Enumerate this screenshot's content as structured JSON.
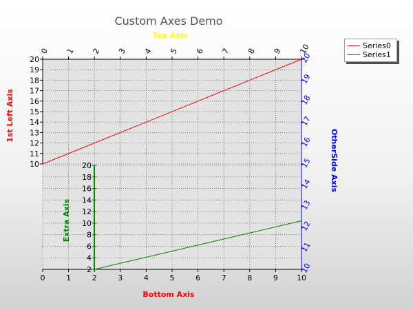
{
  "chart_data": {
    "type": "line",
    "title": "Custom Axes Demo",
    "legend_position": "top-right",
    "grid": true,
    "axes": {
      "bottom": {
        "label": "Bottom Axis",
        "range": [
          0,
          10
        ],
        "ticks": [
          "0",
          "1",
          "2",
          "3",
          "4",
          "5",
          "6",
          "7",
          "8",
          "9",
          "10"
        ],
        "color": "#ff0000"
      },
      "top": {
        "label": "Top Axis",
        "range": [
          0,
          10
        ],
        "ticks": [
          "0",
          "1",
          "2",
          "3",
          "4",
          "5",
          "6",
          "7",
          "8",
          "9",
          "10"
        ],
        "color": "#ffff00"
      },
      "left": {
        "label": "1st Left Axis",
        "range": [
          10,
          20
        ],
        "ticks": [
          "10",
          "11",
          "12",
          "13",
          "14",
          "15",
          "16",
          "17",
          "18",
          "19",
          "20"
        ],
        "color": "#ff0000"
      },
      "right": {
        "label": "OtherSide Axis",
        "range": [
          10,
          20
        ],
        "ticks": [
          "10",
          "11",
          "12",
          "13",
          "14",
          "15",
          "16",
          "17",
          "18",
          "19",
          "20"
        ],
        "color": "#0000ff"
      },
      "extra": {
        "label": "Extra Axis",
        "range": [
          2,
          20
        ],
        "ticks": [
          "2",
          "4",
          "6",
          "8",
          "10",
          "12",
          "14",
          "16",
          "18",
          "20"
        ],
        "color": "#008000"
      }
    },
    "series": [
      {
        "name": "Series0",
        "color": "#ff0000",
        "axis": "left",
        "x": [
          0,
          10
        ],
        "y": [
          10,
          20
        ]
      },
      {
        "name": "Series1",
        "color": "#008000",
        "axis": "extra",
        "x": [
          2,
          4,
          6,
          8,
          10
        ],
        "y": [
          2,
          4.1,
          6.2,
          8.3,
          10.4
        ]
      }
    ]
  }
}
